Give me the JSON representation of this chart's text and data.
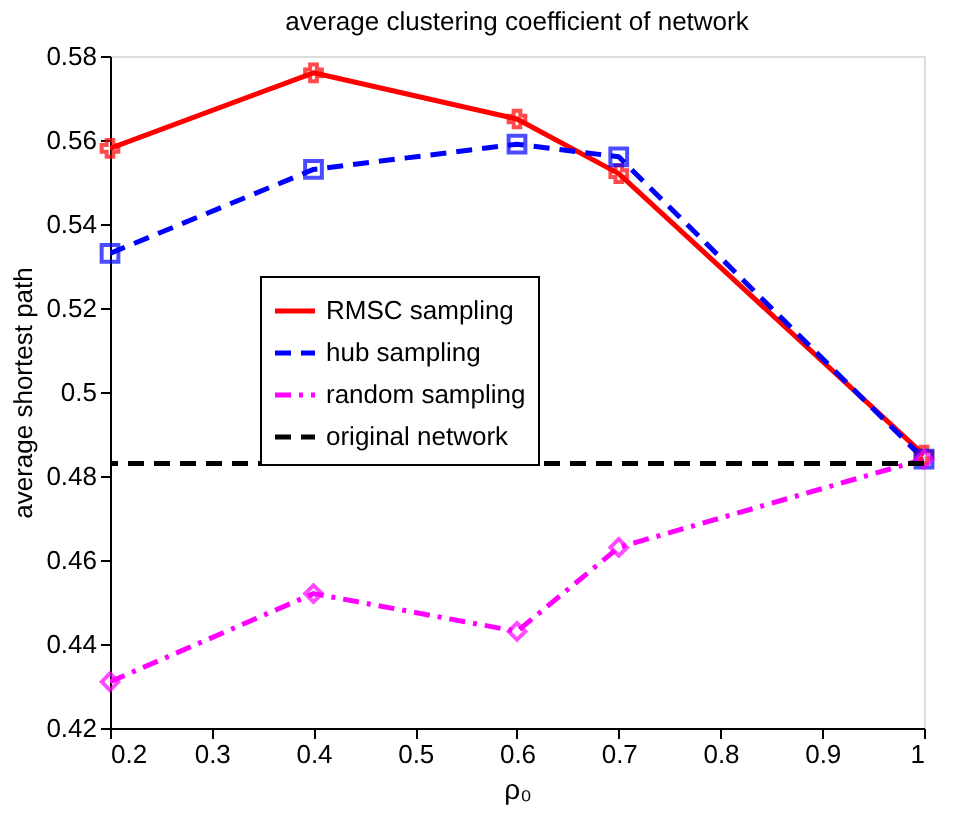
{
  "chart_data": {
    "type": "line",
    "title": "average clustering coefficient of network",
    "xlabel": "ρ₀",
    "ylabel": "average shortest path",
    "x": [
      0.2,
      0.4,
      0.6,
      0.7,
      1.0
    ],
    "series": [
      {
        "name": "RMSC sampling",
        "color": "#ff0000",
        "values": [
          0.558,
          0.576,
          0.565,
          0.552,
          0.485
        ],
        "marker": "cross",
        "line_style": "solid"
      },
      {
        "name": "hub sampling",
        "color": "#0000ff",
        "values": [
          0.533,
          0.553,
          0.559,
          0.556,
          0.484
        ],
        "marker": "square",
        "line_style": "dashed"
      },
      {
        "name": "random sampling",
        "color": "#ff00ff",
        "values": [
          0.431,
          0.452,
          0.443,
          0.463,
          0.484
        ],
        "marker": "diamond",
        "line_style": "dashdot"
      }
    ],
    "ref_lines": [
      {
        "axis": "y",
        "value": 0.483,
        "label": "original network",
        "color": "#000000",
        "line_style": "dashed"
      }
    ],
    "xlim": [
      0.2,
      1.0
    ],
    "xticks": [
      0.2,
      0.3,
      0.4,
      0.5,
      0.6,
      0.7,
      0.8,
      0.9,
      1
    ],
    "ylim": [
      0.42,
      0.58
    ],
    "yticks": [
      0.42,
      0.44,
      0.46,
      0.48,
      0.5,
      0.52,
      0.54,
      0.56,
      0.58
    ],
    "grid": false,
    "legend": "left"
  }
}
